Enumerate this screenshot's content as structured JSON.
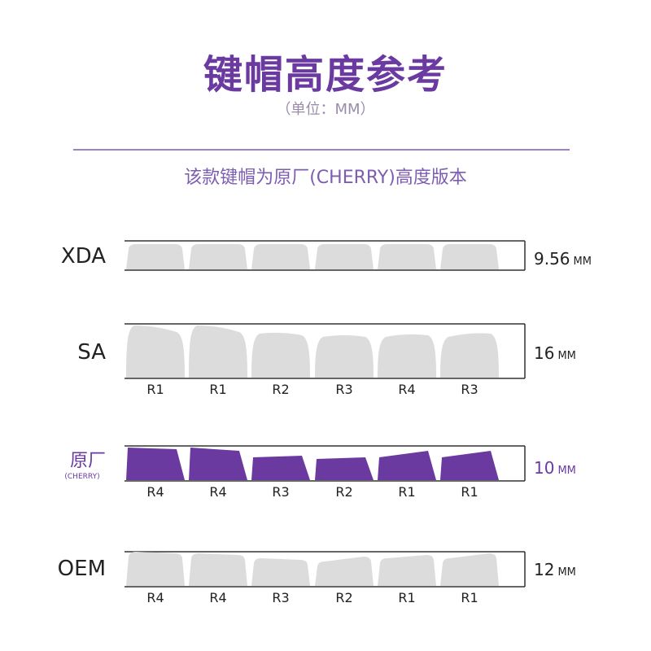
{
  "header": {
    "title": "键帽高度参考",
    "unit": "（单位：MM）",
    "subtitle": "该款键帽为原厂(CHERRY)高度版本"
  },
  "colors": {
    "accent": "#6a3aa0",
    "keycap_gray": "#dcdcdc",
    "keycap_purple": "#6a3aa0",
    "divider": "#9b84c4"
  },
  "profiles": [
    {
      "name": "XDA",
      "sub": "",
      "height_value": "9.56",
      "height_unit": "MM",
      "rows": [
        "",
        "",
        "",
        "",
        "",
        ""
      ],
      "highlight": false,
      "shape": "xda"
    },
    {
      "name": "SA",
      "sub": "",
      "height_value": "16",
      "height_unit": "MM",
      "rows": [
        "R1",
        "R1",
        "R2",
        "R3",
        "R4",
        "R3"
      ],
      "highlight": false,
      "shape": "sa"
    },
    {
      "name": "原厂",
      "sub": "(CHERRY)",
      "height_value": "10",
      "height_unit": "MM",
      "rows": [
        "R4",
        "R4",
        "R3",
        "R2",
        "R1",
        "R1"
      ],
      "highlight": true,
      "shape": "cherry"
    },
    {
      "name": "OEM",
      "sub": "",
      "height_value": "12",
      "height_unit": "MM",
      "rows": [
        "R4",
        "R4",
        "R3",
        "R2",
        "R1",
        "R1"
      ],
      "highlight": false,
      "shape": "oem"
    }
  ]
}
